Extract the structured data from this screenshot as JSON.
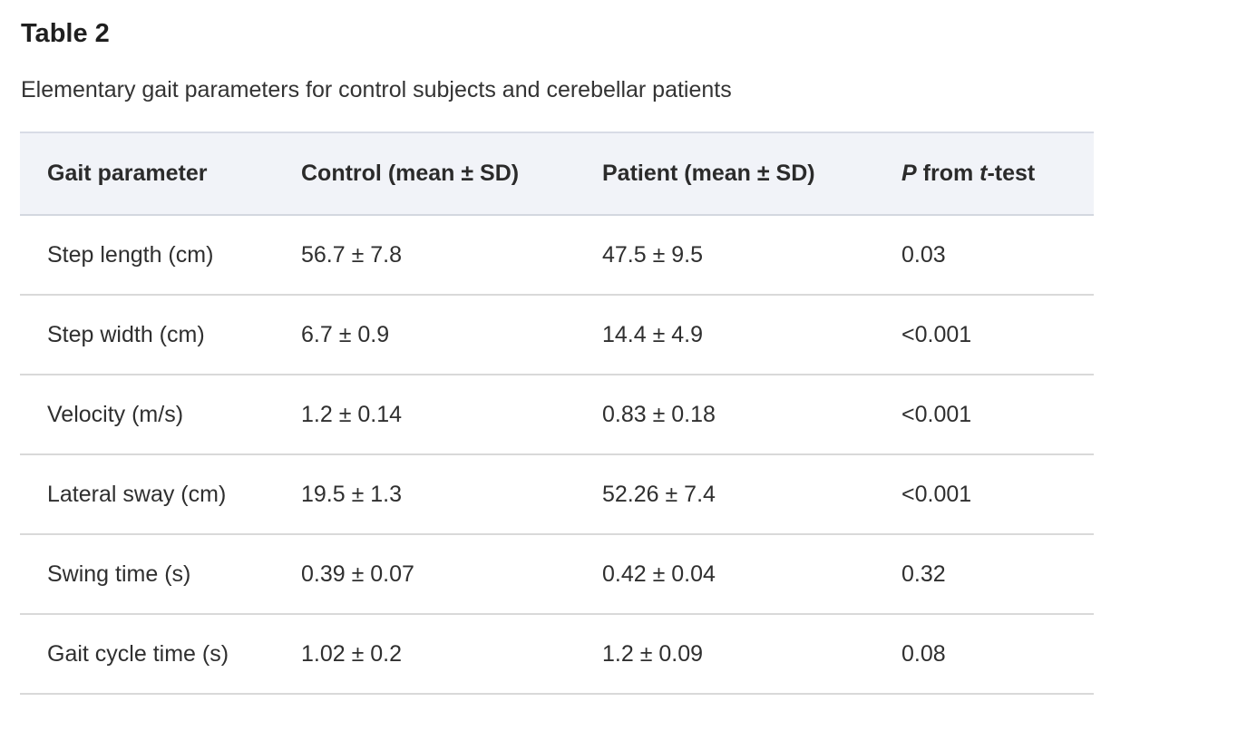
{
  "title": "Table 2",
  "caption": "Elementary gait parameters for control subjects and cerebellar patients",
  "columns": {
    "c1": "Gait parameter",
    "c2": "Control (mean ± SD)",
    "c3": "Patient (mean ± SD)",
    "c4_p": "P",
    "c4_from": " from ",
    "c4_t": "t",
    "c4_test": "-test"
  },
  "rows": [
    {
      "param": "Step length (cm)",
      "control": "56.7 ± 7.8",
      "patient": "47.5 ± 9.5",
      "p": "0.03"
    },
    {
      "param": "Step width (cm)",
      "control": "6.7 ± 0.9",
      "patient": "14.4 ± 4.9",
      "p": "<0.001"
    },
    {
      "param": "Velocity (m/s)",
      "control": "1.2 ± 0.14",
      "patient": "0.83 ± 0.18",
      "p": "<0.001"
    },
    {
      "param": "Lateral sway (cm)",
      "control": "19.5 ± 1.3",
      "patient": "52.26 ± 7.4",
      "p": "<0.001"
    },
    {
      "param": "Swing time (s)",
      "control": "0.39 ± 0.07",
      "patient": "0.42 ± 0.04",
      "p": "0.32"
    },
    {
      "param": "Gait cycle time (s)",
      "control": "1.02 ± 0.2",
      "patient": "1.2 ± 0.09",
      "p": "0.08"
    }
  ]
}
